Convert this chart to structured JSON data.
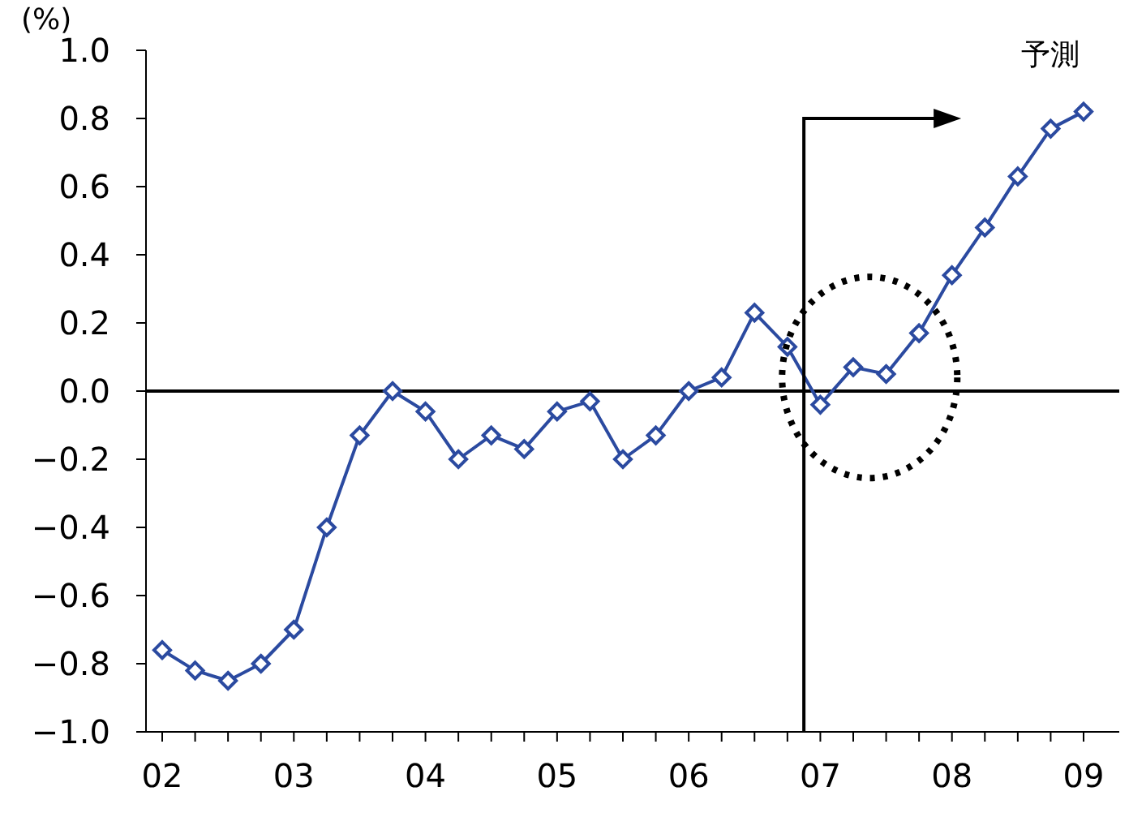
{
  "chart_data": {
    "type": "line",
    "ylabel": "(%)",
    "categories": [
      "02",
      null,
      null,
      null,
      "03",
      null,
      null,
      null,
      "04",
      null,
      null,
      null,
      "05",
      null,
      null,
      null,
      "06",
      null,
      null,
      null,
      "07",
      null,
      null,
      null,
      "08",
      null,
      null,
      null,
      "09"
    ],
    "series": [
      {
        "color": "#2b4aa0",
        "values": [
          -0.76,
          -0.82,
          -0.85,
          -0.8,
          -0.7,
          -0.4,
          -0.13,
          0,
          -0.06,
          -0.2,
          -0.13,
          -0.17,
          -0.06,
          -0.03,
          -0.2,
          -0.13,
          0,
          0.04,
          0.23,
          0.13,
          -0.04,
          0.07,
          0.05,
          0.17,
          0.34,
          0.48,
          0.63,
          0.77,
          0.82
        ]
      }
    ],
    "ylim": [
      -1,
      1
    ],
    "yticks": [
      {
        "value": 1,
        "label": "1.0"
      },
      {
        "value": 0.8,
        "label": "0.8"
      },
      {
        "value": 0.6,
        "label": "0.6"
      },
      {
        "value": 0.4,
        "label": "0.4"
      },
      {
        "value": 0.2,
        "label": "0.2"
      },
      {
        "value": 0,
        "label": "0.0"
      },
      {
        "value": -0.2,
        "label": "−0.2"
      },
      {
        "value": -0.4,
        "label": "−0.4"
      },
      {
        "value": -0.6,
        "label": "−0.6"
      },
      {
        "value": -0.8,
        "label": "−0.8"
      },
      {
        "value": -1,
        "label": "−1.0"
      }
    ],
    "ref_lines": [
      {
        "axis": "y",
        "value": 0,
        "color": "#000000"
      }
    ],
    "annotations": [
      "予測"
    ],
    "marker": "diamond",
    "grid": false,
    "legend": false
  }
}
